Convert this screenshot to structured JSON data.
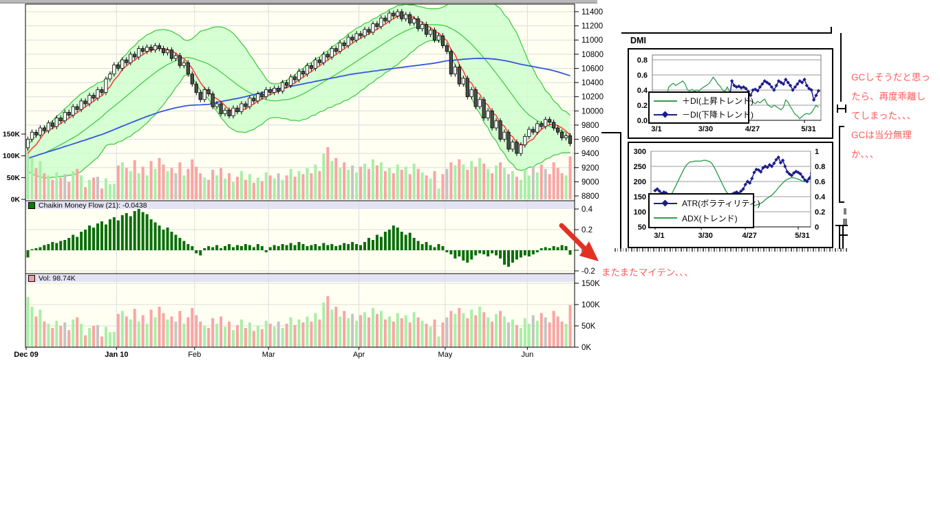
{
  "annotations": {
    "gc_lines": [
      "GCしそうだと思っ",
      "たら、再度乖離し",
      "てしまった、、、",
      "GCは当分無理",
      "か、、、"
    ],
    "maiten": "またまたマイテン、、、"
  },
  "colors": {
    "plot_bg": "#fffff2",
    "grid": "#dcdcdc",
    "header_bg": "#e3e3f5",
    "up_candle": "#ffffff",
    "down_candle": "#4d4d4d",
    "volume_up": "#a8efa8",
    "volume_down": "#fba4a4",
    "volume_neutral": "#c4c4c4",
    "band_fill": "#ccffcc",
    "band_line": "#44cc44",
    "ma_short": "#ff4040",
    "ma_long": "#3355dd",
    "cmf_bar": "#0a6e0a",
    "cmf_swatch": "#008000",
    "vol_swatch": "#f4a0a0",
    "di_plus": "#2e9e4f",
    "di_minus": "#1c1c8f",
    "atr_line": "#1c1c8f",
    "adx_line": "#2e9e4f",
    "annotation_red": "#ff5a5a",
    "arrow_red": "#e33022"
  },
  "chart_data": [
    {
      "id": "main_price",
      "type": "candlestick",
      "x_axis": {
        "labels": [
          "Dec 09",
          "Jan 10",
          "Feb",
          "Mar",
          "Apr",
          "May",
          "Jun"
        ],
        "day_offsets": [
          0,
          22,
          41,
          59,
          81,
          102,
          122
        ],
        "bold": [
          true,
          true,
          false,
          false,
          false,
          false,
          false
        ]
      },
      "y_axis_right": {
        "min": 8800,
        "max": 11400,
        "step": 200
      },
      "y_axis_left_volume": {
        "labels": [
          "150K",
          "100K",
          "50K",
          "0K"
        ],
        "values": [
          150,
          100,
          50,
          0
        ]
      },
      "overlays": [
        "bollinger-band",
        "sma-short-red",
        "sma-mid-green",
        "sma-long-blue",
        "volume-bars"
      ],
      "first_open": 9480,
      "seed_closes": [
        9250,
        9200,
        9300,
        9250,
        9350,
        9300,
        9400,
        9350,
        9300,
        9250,
        9300,
        9350,
        9400,
        9350,
        9300
      ],
      "closes": [
        9600,
        9700,
        9660,
        9760,
        9720,
        9830,
        9780,
        9900,
        9860,
        9980,
        9940,
        10060,
        10020,
        10140,
        10100,
        10220,
        10180,
        10300,
        10260,
        10450,
        10520,
        10650,
        10600,
        10720,
        10680,
        10800,
        10760,
        10880,
        10840,
        10900,
        10860,
        10920,
        10880,
        10820,
        10860,
        10740,
        10780,
        10640,
        10680,
        10520,
        10380,
        10260,
        10160,
        10300,
        10240,
        10060,
        10100,
        9960,
        10010,
        9930,
        10040,
        9990,
        10100,
        10060,
        10180,
        10140,
        10240,
        10200,
        10300,
        10260,
        10320,
        10280,
        10400,
        10360,
        10480,
        10440,
        10560,
        10520,
        10640,
        10600,
        10720,
        10680,
        10800,
        10760,
        10880,
        10840,
        10960,
        10920,
        11040,
        11000,
        11090,
        11060,
        11150,
        11110,
        11230,
        11190,
        11310,
        11270,
        11380,
        11340,
        11400,
        11300,
        11360,
        11240,
        11300,
        11160,
        11220,
        11080,
        11140,
        11000,
        11060,
        10920,
        10840,
        10520,
        10620,
        10380,
        10460,
        10200,
        10300,
        10060,
        10160,
        9900,
        10000,
        9760,
        9860,
        9600,
        9700,
        9460,
        9560,
        9400,
        9520,
        9640,
        9740,
        9700,
        9820,
        9780,
        9880,
        9840,
        9760,
        9700,
        9620,
        9650,
        9540
      ],
      "volumes_k": [
        118,
        95,
        72,
        88,
        60,
        55,
        45,
        62,
        50,
        58,
        40,
        65,
        70,
        55,
        28,
        45,
        50,
        52,
        25,
        48,
        35,
        36,
        78,
        85,
        72,
        65,
        90,
        60,
        75,
        55,
        88,
        70,
        95,
        80,
        65,
        72,
        60,
        85,
        55,
        70,
        92,
        75,
        60,
        50,
        45,
        68,
        55,
        72,
        48,
        60,
        40,
        52,
        65,
        45,
        58,
        38,
        50,
        42,
        62,
        55,
        48,
        60,
        45,
        55,
        70,
        52,
        65,
        58,
        72,
        60,
        80,
        65,
        105,
        120,
        88,
        95,
        72,
        85,
        68,
        78,
        62,
        75,
        82,
        70,
        92,
        78,
        85,
        65,
        72,
        60,
        80,
        68,
        75,
        58,
        82,
        70,
        62,
        55,
        48,
        65,
        25,
        58,
        70,
        85,
        78,
        92,
        80,
        68,
        88,
        75,
        95,
        82,
        70,
        60,
        78,
        85,
        72,
        58,
        65,
        52,
        45,
        68,
        55,
        75,
        62,
        80,
        70,
        58,
        85,
        72,
        60,
        55,
        98.74
      ],
      "gray_volume_indexes": [
        9,
        17,
        36,
        61,
        79,
        102,
        117,
        123,
        126
      ]
    },
    {
      "id": "cmf",
      "type": "bar",
      "label": "Chaikin Money Flow (21): -0.0438",
      "y_tick_labels": [
        "0.4",
        "0.2",
        "0",
        "-0.2"
      ],
      "y_tick_values": [
        0.4,
        0.2,
        0,
        -0.2
      ],
      "ylim": [
        -0.25,
        0.45
      ],
      "values": [
        -0.07,
        0.01,
        0.02,
        0.03,
        0.05,
        0.06,
        0.08,
        0.07,
        0.09,
        0.1,
        0.12,
        0.15,
        0.13,
        0.18,
        0.2,
        0.24,
        0.22,
        0.26,
        0.28,
        0.25,
        0.3,
        0.32,
        0.29,
        0.34,
        0.36,
        0.33,
        0.38,
        0.4,
        0.37,
        0.35,
        0.3,
        0.27,
        0.24,
        0.2,
        0.22,
        0.18,
        0.15,
        0.12,
        0.09,
        0.06,
        0.04,
        -0.03,
        -0.05,
        0.02,
        0.04,
        0.03,
        0.05,
        0.02,
        0.04,
        0.06,
        0.03,
        0.05,
        0.04,
        0.06,
        0.05,
        0.03,
        0.06,
        0.04,
        -0.02,
        0.03,
        0.05,
        0.04,
        0.06,
        0.05,
        0.07,
        0.05,
        0.08,
        0.06,
        0.04,
        0.05,
        0.06,
        0.04,
        0.07,
        0.05,
        0.06,
        0.04,
        0.05,
        0.07,
        0.06,
        0.08,
        0.06,
        0.05,
        0.08,
        0.12,
        0.1,
        0.15,
        0.13,
        0.18,
        0.2,
        0.24,
        0.22,
        0.18,
        0.15,
        0.17,
        0.12,
        0.09,
        0.06,
        0.08,
        0.05,
        0.03,
        0.06,
        0.04,
        -0.02,
        -0.04,
        -0.08,
        -0.06,
        -0.1,
        -0.12,
        -0.09,
        -0.05,
        -0.03,
        -0.04,
        -0.06,
        -0.03,
        -0.05,
        -0.08,
        -0.14,
        -0.16,
        -0.12,
        -0.09,
        -0.07,
        -0.05,
        -0.06,
        -0.04,
        -0.02,
        0.02,
        0.03,
        0.02,
        0.04,
        0.03,
        0.05,
        0.04,
        -0.0438
      ]
    },
    {
      "id": "volume_panel",
      "type": "bar",
      "label": "Vol: 98.74K",
      "y_tick_labels": [
        "150K",
        "100K",
        "50K",
        "0K"
      ],
      "y_tick_values": [
        150,
        100,
        50,
        0
      ],
      "values_note": "same series as chart_data.0.volumes_k"
    },
    {
      "id": "dmi",
      "type": "line",
      "title": "DMI",
      "x_tick_labels": [
        "3/1",
        "3/30",
        "4/27",
        "5/31"
      ],
      "x_tick_days": [
        0,
        21,
        41,
        65
      ],
      "y_tick_labels": [
        "0.8",
        "0.6",
        "0.4",
        "0.2",
        "0.0"
      ],
      "y_tick_values": [
        0.8,
        0.6,
        0.4,
        0.2,
        0
      ],
      "ylim": [
        0,
        0.86
      ],
      "legend_position": "lower-left",
      "series": [
        {
          "name": "＋DI(上昇トレンド)",
          "color_key": "di_plus",
          "marker": "none",
          "values": [
            0.28,
            0.3,
            0.27,
            0.25,
            0.28,
            0.3,
            0.3,
            0.44,
            0.47,
            0.49,
            0.46,
            0.48,
            0.5,
            0.52,
            0.48,
            0.4,
            0.39,
            0.41,
            0.38,
            0.4,
            0.39,
            0.42,
            0.44,
            0.46,
            0.48,
            0.52,
            0.57,
            0.53,
            0.48,
            0.45,
            0.4,
            0.38,
            0.44,
            0.38,
            0.33,
            0.3,
            0.28,
            0.26,
            0.24,
            0.27,
            0.28,
            0.25,
            0.26,
            0.24,
            0.22,
            0.25,
            0.23,
            0.26,
            0.28,
            0.22,
            0.19,
            0.17,
            0.2,
            0.18,
            0.16,
            0.14,
            0.17,
            0.27,
            0.24,
            0.18,
            0.13,
            0.08,
            0.06,
            0.02,
            0.05,
            0.08,
            0.09,
            0.08,
            0.1,
            0.15,
            0.2,
            0.17
          ]
        },
        {
          "name": "－DI(下降トレンド)",
          "color_key": "di_minus",
          "marker": "diamond",
          "values": [
            0.25,
            0.23,
            0.26,
            0.28,
            0.25,
            0.22,
            0.2,
            0.18,
            0.2,
            0.22,
            0.19,
            0.17,
            0.2,
            0.18,
            0.22,
            0.26,
            0.28,
            0.25,
            0.27,
            0.24,
            0.26,
            0.23,
            0.2,
            0.22,
            0.18,
            0.16,
            0.14,
            0.17,
            0.2,
            0.24,
            0.28,
            0.3,
            0.26,
            0.3,
            0.52,
            0.46,
            0.44,
            0.45,
            0.43,
            0.44,
            0.42,
            0.38,
            0.33,
            0.4,
            0.41,
            0.39,
            0.44,
            0.48,
            0.52,
            0.5,
            0.48,
            0.44,
            0.4,
            0.46,
            0.52,
            0.5,
            0.48,
            0.54,
            0.5,
            0.46,
            0.4,
            0.44,
            0.48,
            0.52,
            0.5,
            0.54,
            0.46,
            0.42,
            0.4,
            0.27,
            0.33,
            0.39
          ]
        }
      ]
    },
    {
      "id": "atr_adx",
      "type": "line",
      "x_tick_labels": [
        "3/1",
        "3/30",
        "4/27",
        "5/31"
      ],
      "x_tick_days": [
        0,
        21,
        41,
        65
      ],
      "y_left_tick_labels": [
        "300",
        "250",
        "200",
        "150",
        "100",
        "50"
      ],
      "y_left_tick_values": [
        300,
        250,
        200,
        150,
        100,
        50
      ],
      "y_right_tick_labels": [
        "1",
        "0.8",
        "0.6",
        "0.4",
        "0.2",
        "0"
      ],
      "y_right_tick_values": [
        1,
        0.8,
        0.6,
        0.4,
        0.2,
        0
      ],
      "legend_position": "lower-left",
      "series": [
        {
          "name": "ATR(ボラティリティ)",
          "axis": "left",
          "color_key": "atr_line",
          "marker": "diamond",
          "values": [
            170,
            175,
            168,
            160,
            165,
            162,
            155,
            150,
            148,
            145,
            142,
            140,
            138,
            140,
            137,
            135,
            138,
            136,
            140,
            138,
            136,
            139,
            137,
            140,
            142,
            140,
            138,
            141,
            139,
            142,
            145,
            148,
            150,
            152,
            155,
            158,
            162,
            165,
            160,
            168,
            175,
            190,
            200,
            195,
            210,
            230,
            240,
            238,
            232,
            245,
            250,
            247,
            255,
            250,
            260,
            272,
            280,
            262,
            270,
            250,
            232,
            225,
            220,
            228,
            233,
            230,
            225,
            215,
            205,
            200,
            210,
            227
          ]
        },
        {
          "name": "ADX(トレンド)",
          "axis": "right",
          "color_key": "adx_line",
          "marker": "none",
          "values": [
            0.32,
            0.33,
            0.32,
            0.33,
            0.34,
            0.36,
            0.38,
            0.42,
            0.46,
            0.52,
            0.58,
            0.64,
            0.7,
            0.76,
            0.81,
            0.84,
            0.86,
            0.86,
            0.87,
            0.87,
            0.87,
            0.87,
            0.88,
            0.88,
            0.87,
            0.86,
            0.83,
            0.78,
            0.72,
            0.66,
            0.6,
            0.54,
            0.48,
            0.44,
            0.41,
            0.38,
            0.35,
            0.32,
            0.3,
            0.29,
            0.28,
            0.28,
            0.27,
            0.27,
            0.28,
            0.28,
            0.29,
            0.3,
            0.31,
            0.33,
            0.36,
            0.38,
            0.4,
            0.42,
            0.45,
            0.48,
            0.52,
            0.55,
            0.58,
            0.61,
            0.63,
            0.64,
            0.65,
            0.65,
            0.64,
            0.63,
            0.62,
            0.6,
            0.6,
            0.62,
            0.66,
            0.62
          ]
        }
      ]
    }
  ]
}
